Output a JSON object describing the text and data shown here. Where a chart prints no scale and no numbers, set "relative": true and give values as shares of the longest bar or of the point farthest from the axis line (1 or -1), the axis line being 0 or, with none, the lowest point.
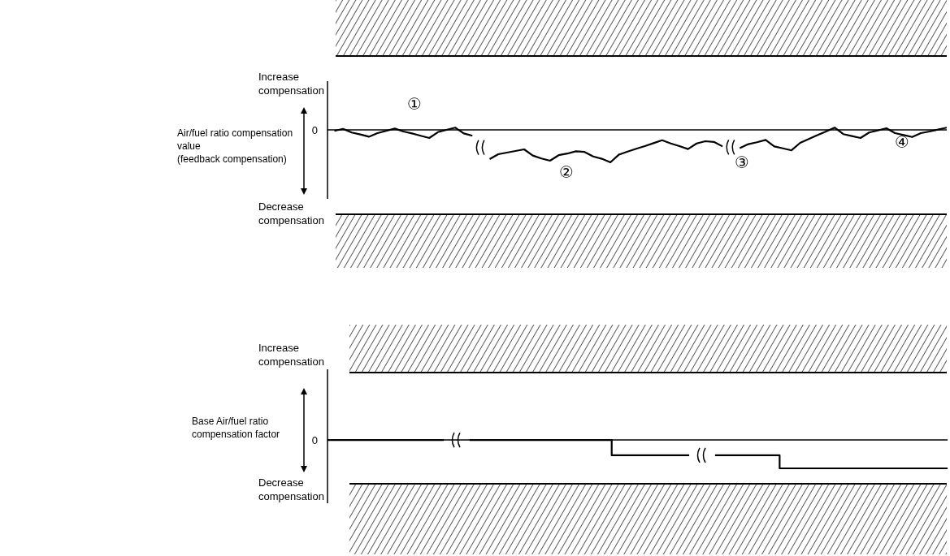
{
  "chart_data": [
    {
      "type": "line",
      "relative": true,
      "color": "#000000",
      "ylabel": "Air/fuel ratio compensation\nvalue\n(feedback compensation)",
      "categories": [
        null,
        null,
        null,
        null,
        null,
        null,
        null,
        null,
        null,
        null,
        null,
        null,
        null,
        null,
        null,
        null,
        null,
        null,
        null,
        null,
        null,
        null,
        null,
        null,
        null,
        null,
        null,
        null,
        null,
        null,
        null,
        null,
        null,
        null,
        null,
        null,
        null,
        null,
        null,
        null,
        null,
        null,
        null,
        null,
        null,
        null,
        null,
        null,
        null,
        null,
        null,
        null,
        null,
        null,
        null,
        null,
        null,
        null,
        null,
        null,
        null,
        null,
        null,
        null,
        null,
        null,
        null,
        null,
        null,
        null,
        null,
        null
      ],
      "values": [
        -0.03,
        0.03,
        -0.08,
        -0.14,
        -0.21,
        -0.1,
        -0.03,
        0.04,
        -0.05,
        -0.11,
        -0.18,
        -0.25,
        -0.07,
        0,
        0.07,
        -0.11,
        -0.18,
        null,
        -0.9,
        -0.75,
        -0.7,
        -0.65,
        -0.6,
        -0.79,
        -0.88,
        -0.95,
        -0.78,
        -0.73,
        -0.66,
        -0.68,
        -0.82,
        -0.89,
        -1,
        -0.76,
        -0.67,
        -0.58,
        -0.5,
        -0.41,
        -0.32,
        -0.42,
        -0.5,
        -0.59,
        -0.42,
        -0.35,
        -0.37,
        -0.51,
        null,
        -0.56,
        -0.44,
        -0.38,
        -0.31,
        -0.51,
        -0.57,
        -0.63,
        -0.4,
        -0.28,
        -0.16,
        -0.05,
        0.07,
        -0.13,
        -0.19,
        -0.25,
        -0.08,
        -0.02,
        0.05,
        -0.1,
        -0.16,
        -0.22,
        -0.1,
        -0.05,
        0.01,
        0.07
      ],
      "ref_lines": [
        {
          "axis": "y",
          "value": 0,
          "label": "0"
        }
      ],
      "annotations": [
        "Increase compensation",
        "Decrease compensation",
        "①",
        "②",
        "③",
        "④"
      ]
    },
    {
      "type": "step",
      "relative": true,
      "color": "#000000",
      "ylabel": "Base Air/fuel ratio\ncompensation factor",
      "categories": [
        null,
        null,
        null,
        null,
        null,
        null,
        null,
        null,
        null,
        null,
        null,
        null,
        null,
        null,
        null,
        null,
        null,
        null,
        null,
        null,
        null,
        null,
        null,
        null,
        null,
        null,
        null,
        null,
        null,
        null,
        null,
        null,
        null,
        null,
        null,
        null,
        null,
        null,
        null,
        null,
        null,
        null,
        null,
        null,
        null,
        null,
        null,
        null,
        null
      ],
      "values": [
        0,
        0,
        0,
        0,
        0,
        0,
        0,
        0,
        0,
        0,
        null,
        0,
        0,
        0,
        0,
        0,
        0,
        0,
        0,
        0,
        0,
        0,
        -0.54,
        -0.54,
        -0.54,
        -0.54,
        -0.54,
        -0.54,
        -0.54,
        null,
        -0.54,
        -0.54,
        -0.54,
        -0.54,
        -0.54,
        -1,
        -1,
        -1,
        -1,
        -1,
        -1,
        -1,
        -1,
        -1,
        -1,
        -1,
        -1,
        -1,
        -1
      ],
      "ref_lines": [
        {
          "axis": "y",
          "value": 0,
          "label": "0"
        }
      ],
      "annotations": [
        "Increase compensation",
        "Decrease compensation"
      ]
    }
  ]
}
